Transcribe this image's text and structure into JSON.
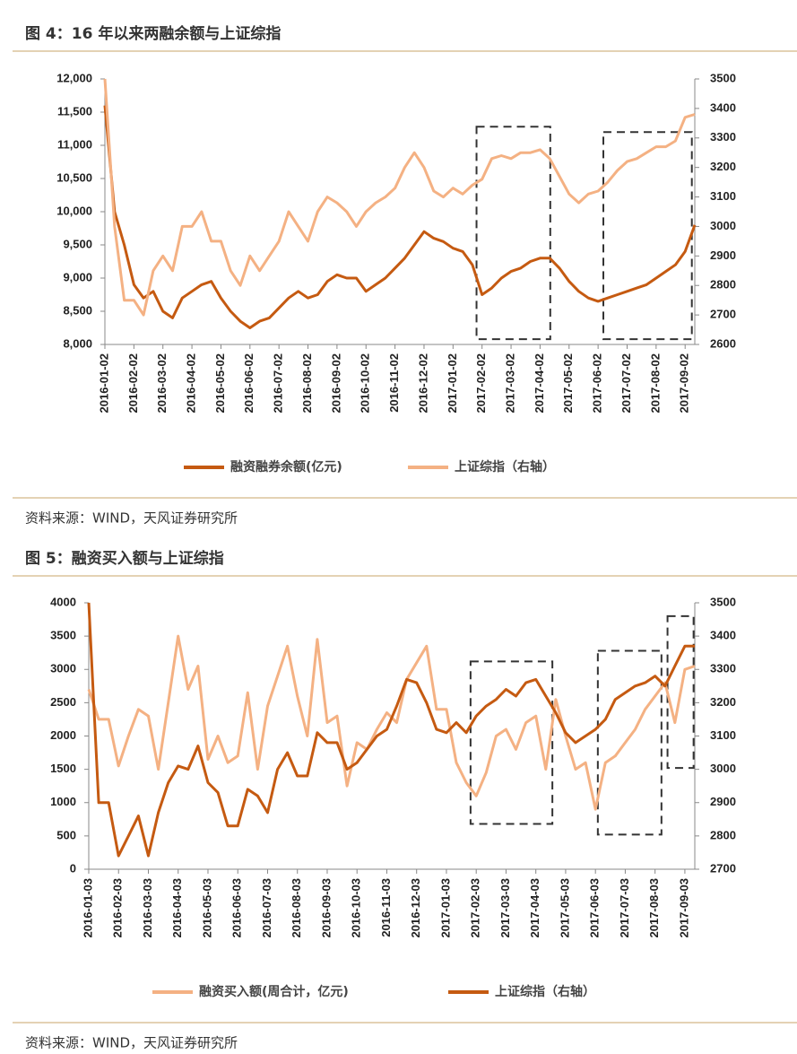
{
  "chart_data": [
    {
      "type": "line",
      "title": "图 4：16 年以来两融余额与上证综指",
      "source": "资料来源：WIND，天风证券研究所",
      "categories": [
        "2016-01-02",
        null,
        null,
        "2016-02-02",
        null,
        null,
        "2016-03-02",
        null,
        null,
        "2016-04-02",
        null,
        null,
        "2016-05-02",
        null,
        null,
        "2016-06-02",
        null,
        null,
        "2016-07-02",
        null,
        null,
        "2016-08-02",
        null,
        null,
        "2016-09-02",
        null,
        null,
        "2016-10-02",
        null,
        null,
        "2016-11-02",
        null,
        null,
        "2016-12-02",
        null,
        null,
        "2017-01-02",
        null,
        null,
        "2017-02-02",
        null,
        null,
        "2017-03-02",
        null,
        null,
        "2017-04-02",
        null,
        null,
        "2017-05-02",
        null,
        null,
        "2017-06-02",
        null,
        null,
        "2017-07-02",
        null,
        null,
        "2017-08-02",
        null,
        null,
        "2017-09-02",
        null
      ],
      "series": [
        {
          "name": "融资融券余额(亿元)",
          "color": "#c55a11",
          "axis": "y",
          "values": [
            11600,
            10000,
            9500,
            8900,
            8700,
            8800,
            8500,
            8400,
            8700,
            8800,
            8900,
            8950,
            8700,
            8500,
            8350,
            8250,
            8350,
            8400,
            8550,
            8700,
            8800,
            8700,
            8750,
            8950,
            9050,
            9000,
            9000,
            8800,
            8900,
            9000,
            9150,
            9300,
            9500,
            9700,
            9600,
            9550,
            9450,
            9400,
            9200,
            8750,
            8850,
            9000,
            9100,
            9150,
            9250,
            9300,
            9300,
            9150,
            8950,
            8800,
            8700,
            8650,
            8700,
            8750,
            8800,
            8850,
            8900,
            9000,
            9100,
            9200,
            9400,
            9800
          ]
        },
        {
          "name": "上证综指（右轴）",
          "color": "#f4b183",
          "axis": "y2",
          "values": [
            3500,
            3000,
            2750,
            2750,
            2700,
            2850,
            2900,
            2850,
            3000,
            3000,
            3050,
            2950,
            2950,
            2850,
            2800,
            2900,
            2850,
            2900,
            2950,
            3050,
            3000,
            2950,
            3050,
            3100,
            3080,
            3050,
            3000,
            3050,
            3080,
            3100,
            3130,
            3200,
            3250,
            3200,
            3120,
            3100,
            3130,
            3110,
            3140,
            3160,
            3230,
            3240,
            3230,
            3250,
            3250,
            3260,
            3230,
            3170,
            3110,
            3080,
            3110,
            3120,
            3150,
            3190,
            3220,
            3230,
            3250,
            3270,
            3270,
            3290,
            3370,
            3380
          ]
        }
      ],
      "ylim": [
        8000,
        12000
      ],
      "yticks": [
        {
          "value": 8000,
          "label": "8,000"
        },
        {
          "value": 8500,
          "label": "8,500"
        },
        {
          "value": 9000,
          "label": "9,000"
        },
        {
          "value": 9500,
          "label": "9,500"
        },
        {
          "value": 10000,
          "label": "10,000"
        },
        {
          "value": 10500,
          "label": "10,500"
        },
        {
          "value": 11000,
          "label": "11,000"
        },
        {
          "value": 11500,
          "label": "11,500"
        },
        {
          "value": 12000,
          "label": "12,000"
        }
      ],
      "y2lim": [
        2600,
        3500
      ],
      "y2ticks": [
        2600,
        2700,
        2800,
        2900,
        3000,
        3100,
        3200,
        3300,
        3400,
        3500
      ],
      "legend": "bottom",
      "grid": false
    },
    {
      "type": "line",
      "title": "图 5：融资买入额与上证综指",
      "source": "资料来源：WIND，天风证券研究所",
      "categories": [
        "2016-01-03",
        null,
        null,
        "2016-02-03",
        null,
        null,
        "2016-03-03",
        null,
        null,
        "2016-04-03",
        null,
        null,
        "2016-05-03",
        null,
        null,
        "2016-06-03",
        null,
        null,
        "2016-07-03",
        null,
        null,
        "2016-08-03",
        null,
        null,
        "2016-09-03",
        null,
        null,
        "2016-10-03",
        null,
        null,
        "2016-11-03",
        null,
        null,
        "2016-12-03",
        null,
        null,
        "2017-01-03",
        null,
        null,
        "2017-02-03",
        null,
        null,
        "2017-03-03",
        null,
        null,
        "2017-04-03",
        null,
        null,
        "2017-05-03",
        null,
        null,
        "2017-06-03",
        null,
        null,
        "2017-07-03",
        null,
        null,
        "2017-08-03",
        null,
        null,
        "2017-09-03",
        null
      ],
      "series": [
        {
          "name": "融资买入额(周合计，亿元)",
          "color": "#f4b183",
          "axis": "y",
          "values": [
            2700,
            2250,
            2250,
            1550,
            2000,
            2400,
            2300,
            1500,
            2500,
            3500,
            2700,
            3050,
            1650,
            2000,
            1600,
            1700,
            2650,
            1500,
            2450,
            2900,
            3350,
            2600,
            2000,
            3450,
            2200,
            2300,
            1250,
            1900,
            1800,
            2100,
            2350,
            2200,
            2850,
            3100,
            3350,
            2400,
            2400,
            1600,
            1300,
            1100,
            1450,
            2000,
            2100,
            1800,
            2200,
            2300,
            1500,
            2550,
            2000,
            1500,
            1600,
            900,
            1600,
            1700,
            1900,
            2100,
            2400,
            2600,
            2800,
            2200,
            3000,
            3050
          ]
        },
        {
          "name": "上证综指（右轴）",
          "color": "#c55a11",
          "axis": "y2",
          "values": [
            3500,
            2900,
            2900,
            2740,
            2800,
            2860,
            2740,
            2870,
            2960,
            3010,
            3000,
            3070,
            2960,
            2930,
            2830,
            2830,
            2940,
            2920,
            2870,
            3000,
            3050,
            2980,
            2980,
            3110,
            3080,
            3080,
            3000,
            3020,
            3060,
            3100,
            3120,
            3190,
            3270,
            3260,
            3200,
            3120,
            3110,
            3140,
            3110,
            3160,
            3190,
            3210,
            3240,
            3220,
            3260,
            3270,
            3220,
            3170,
            3110,
            3080,
            3100,
            3120,
            3150,
            3210,
            3230,
            3250,
            3260,
            3280,
            3250,
            3310,
            3370,
            3370
          ]
        }
      ],
      "ylim": [
        0,
        4000
      ],
      "yticks": [
        0,
        500,
        1000,
        1500,
        2000,
        2500,
        3000,
        3500,
        4000
      ],
      "y2lim": [
        2700,
        3500
      ],
      "y2ticks": [
        2700,
        2800,
        2900,
        3000,
        3100,
        3200,
        3300,
        3400,
        3500
      ],
      "legend": "bottom",
      "grid": false
    }
  ]
}
